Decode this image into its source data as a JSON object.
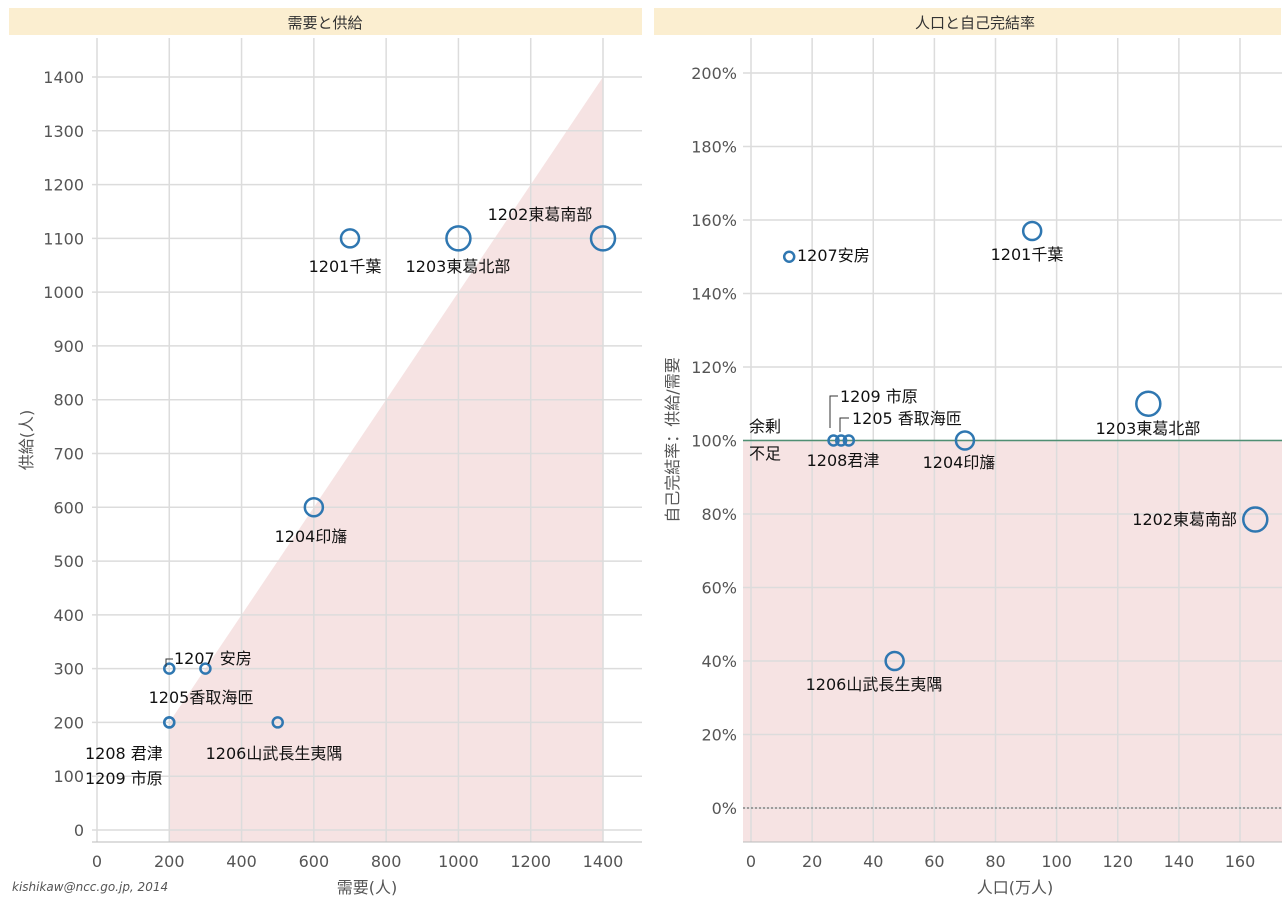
{
  "footer": {
    "credit": "kishikaw@ncc.go.jp, 2014"
  },
  "colors": {
    "title_band": "#fbeed0",
    "grid": "#dcdcdc",
    "shade": "#f6e3e3",
    "marker": "#2f77b1",
    "reference_line": "#4f8f73",
    "surplus_text": "#4f9a6d",
    "shortage_text": "#c0392b"
  },
  "chart_data": [
    {
      "type": "scatter",
      "title": "需要と供給",
      "xlabel": "需要(人)",
      "ylabel": "供給(人)",
      "xlim": [
        0,
        1500
      ],
      "ylim": [
        0,
        1400
      ],
      "xticks": [
        0,
        200,
        400,
        600,
        800,
        1000,
        1200,
        1400
      ],
      "yticks": [
        0,
        100,
        200,
        300,
        400,
        500,
        600,
        700,
        800,
        900,
        1000,
        1100,
        1200,
        1300,
        1400
      ],
      "grid": true,
      "shaded_region": "below the diagonal y = x, from x = 200 to x = 1400",
      "points": [
        {
          "id": "1201",
          "label": "1201千葉",
          "x": 700,
          "y": 1100,
          "size": "medium"
        },
        {
          "id": "1202",
          "label": "1202東葛南部",
          "x": 1400,
          "y": 1100,
          "size": "large"
        },
        {
          "id": "1203",
          "label": "1203東葛北部",
          "x": 1000,
          "y": 1100,
          "size": "large"
        },
        {
          "id": "1204",
          "label": "1204印旛",
          "x": 600,
          "y": 600,
          "size": "medium"
        },
        {
          "id": "1205",
          "label": "1205香取海匝",
          "x": 300,
          "y": 300,
          "size": "small"
        },
        {
          "id": "1206",
          "label": "1206山武長生夷隅",
          "x": 500,
          "y": 200,
          "size": "small"
        },
        {
          "id": "1207",
          "label": "1207 安房",
          "x": 200,
          "y": 300,
          "size": "small"
        },
        {
          "id": "1208",
          "label": "1208 君津",
          "x": 200,
          "y": 200,
          "size": "small"
        },
        {
          "id": "1209",
          "label": "1209 市原",
          "x": 200,
          "y": 200,
          "size": "small"
        }
      ]
    },
    {
      "type": "scatter",
      "title": "人口と自己完結率",
      "xlabel": "人口(万人)",
      "ylabel": "自己完結率：供給/需要",
      "xlim": [
        0,
        175
      ],
      "ylim": [
        -10,
        210
      ],
      "xticks": [
        0,
        20,
        40,
        60,
        80,
        100,
        120,
        140,
        160
      ],
      "yticks": [
        "0%",
        "20%",
        "40%",
        "60%",
        "80%",
        "100%",
        "120%",
        "140%",
        "160%",
        "180%",
        "200%"
      ],
      "grid": true,
      "reference_line": {
        "y": 100,
        "above_label": "余剰",
        "below_label": "不足"
      },
      "shaded_region": "below 100%",
      "points": [
        {
          "id": "1201",
          "label": "1201千葉",
          "x": 92,
          "y": 157,
          "size": "medium"
        },
        {
          "id": "1202",
          "label": "1202東葛南部",
          "x": 165,
          "y": 78.5,
          "size": "large"
        },
        {
          "id": "1203",
          "label": "1203東葛北部",
          "x": 130,
          "y": 110,
          "size": "large"
        },
        {
          "id": "1204",
          "label": "1204印旛",
          "x": 70,
          "y": 100,
          "size": "medium"
        },
        {
          "id": "1205",
          "label": "1205 香取海匝",
          "x": 32,
          "y": 100,
          "size": "small"
        },
        {
          "id": "1206",
          "label": "1206山武長生夷隅",
          "x": 47,
          "y": 40,
          "size": "medium"
        },
        {
          "id": "1207",
          "label": "1207安房",
          "x": 12.5,
          "y": 150,
          "size": "small"
        },
        {
          "id": "1208",
          "label": "1208君津",
          "x": 27,
          "y": 100,
          "size": "small"
        },
        {
          "id": "1209",
          "label": "1209 市原",
          "x": 29.5,
          "y": 100,
          "size": "small"
        }
      ]
    }
  ]
}
